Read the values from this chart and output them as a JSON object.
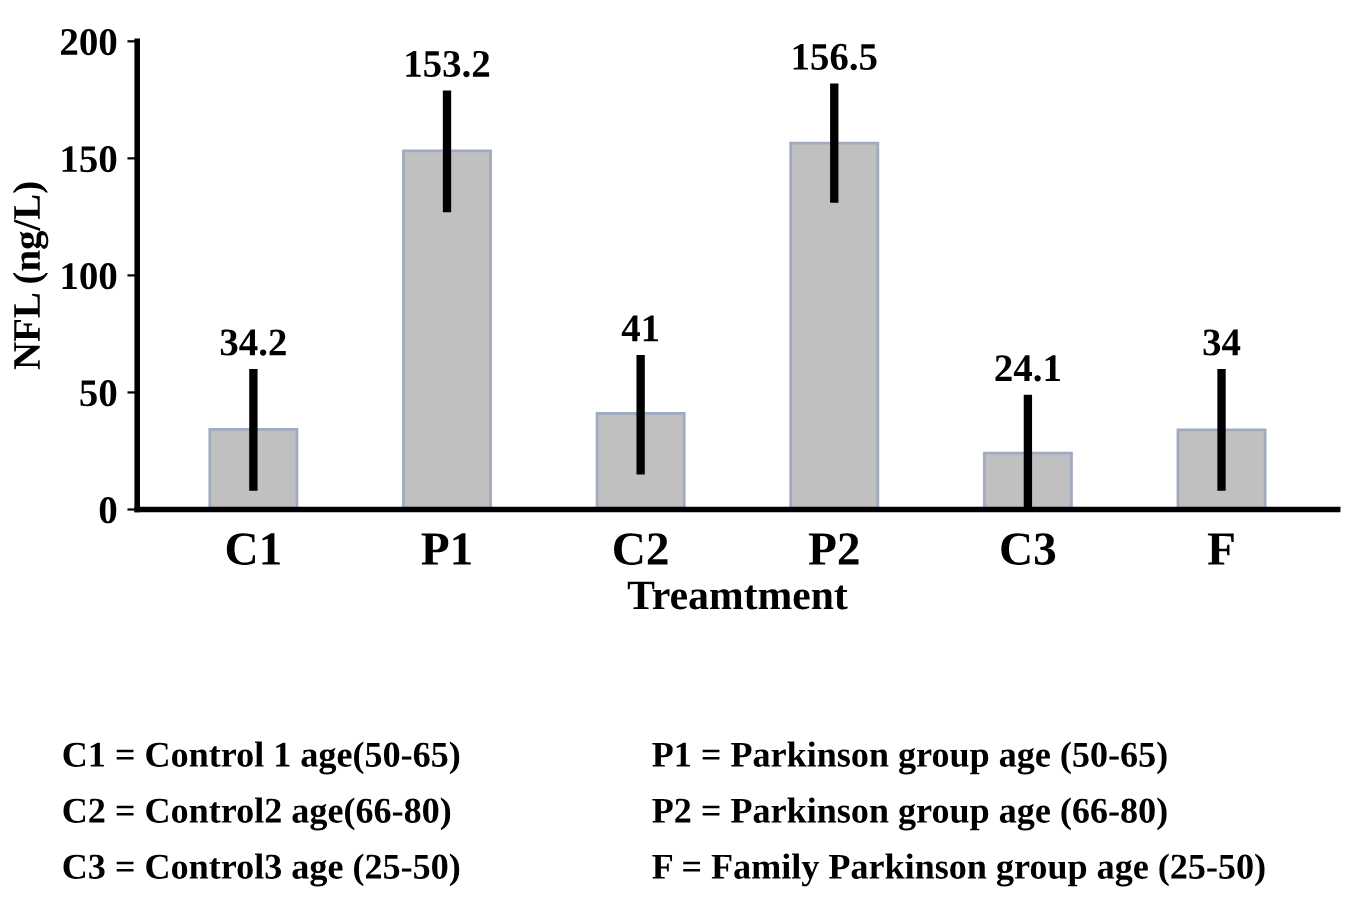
{
  "chart_data": {
    "type": "bar",
    "xlabel": "Treamtment",
    "ylabel": "NFL (ng/L)",
    "categories": [
      "C1",
      "P1",
      "C2",
      "P2",
      "C3",
      "F"
    ],
    "values": [
      34.2,
      153.2,
      41,
      156.5,
      24.1,
      34
    ],
    "color": "#c0c0c0",
    "errors": [
      [
        8,
        60
      ],
      [
        127,
        179
      ],
      [
        15,
        66
      ],
      [
        131,
        182
      ],
      [
        0,
        49
      ],
      [
        8,
        60
      ]
    ],
    "data_labels": true,
    "ylim": [
      0,
      200
    ],
    "yticks": [
      0,
      50,
      100,
      150,
      200
    ],
    "grid": false,
    "annotations": [
      "C1 = Control 1 age(50-65)",
      "P1 = Parkinson group age (50-65)",
      "C2 = Control2 age(66-80)",
      "P2 = Parkinson group age (66-80)",
      "C3 = Control3 age (25-50)",
      "F = Family Parkinson group age (25-50)"
    ]
  }
}
